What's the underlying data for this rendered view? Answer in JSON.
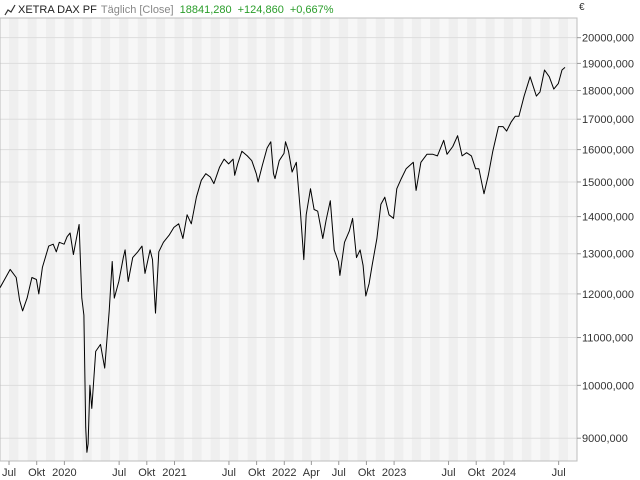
{
  "header": {
    "instrument": "XETRA DAX PF",
    "interval_mode": "Täglich [Close]",
    "last_value": "18841,280",
    "change_abs": "+124,860",
    "change_pct": "+0,667%",
    "currency": "€",
    "change_color": "#2a9d2a"
  },
  "chart_data": {
    "type": "line",
    "title": "XETRA DAX PF",
    "y_scale": "log",
    "ylim": [
      8600,
      20800
    ],
    "xlim": [
      "2019-06-01",
      "2024-08-31"
    ],
    "grid": true,
    "y_ticks": [
      {
        "value": 9000,
        "label": "9000,000"
      },
      {
        "value": 10000,
        "label": "10000,000"
      },
      {
        "value": 11000,
        "label": "11000,000"
      },
      {
        "value": 12000,
        "label": "12000,000"
      },
      {
        "value": 13000,
        "label": "13000,000"
      },
      {
        "value": 14000,
        "label": "14000,000"
      },
      {
        "value": 15000,
        "label": "15000,000"
      },
      {
        "value": 16000,
        "label": "16000,000"
      },
      {
        "value": 17000,
        "label": "17000,000"
      },
      {
        "value": 18000,
        "label": "18000,000"
      },
      {
        "value": 19000,
        "label": "19000,000"
      },
      {
        "value": 20000,
        "label": "20000,000"
      }
    ],
    "x_ticks": [
      {
        "date": "2019-07-01",
        "label": "Jul"
      },
      {
        "date": "2019-10-01",
        "label": "Okt"
      },
      {
        "date": "2020-01-01",
        "label": "2020"
      },
      {
        "date": "2020-07-01",
        "label": "Jul"
      },
      {
        "date": "2020-10-01",
        "label": "Okt"
      },
      {
        "date": "2021-01-01",
        "label": "2021"
      },
      {
        "date": "2021-07-01",
        "label": "Jul"
      },
      {
        "date": "2021-10-01",
        "label": "Okt"
      },
      {
        "date": "2022-01-01",
        "label": "2022"
      },
      {
        "date": "2022-04-01",
        "label": "Apr"
      },
      {
        "date": "2022-07-01",
        "label": "Jul"
      },
      {
        "date": "2022-10-01",
        "label": "Okt"
      },
      {
        "date": "2023-01-01",
        "label": "2023"
      },
      {
        "date": "2023-07-01",
        "label": "Jul"
      },
      {
        "date": "2023-10-01",
        "label": "Okt"
      },
      {
        "date": "2024-01-01",
        "label": "2024"
      },
      {
        "date": "2024-07-01",
        "label": "Jul"
      }
    ],
    "series": [
      {
        "color": "#000000",
        "points": [
          [
            "2019-06-01",
            12150
          ],
          [
            "2019-06-20",
            12400
          ],
          [
            "2019-07-05",
            12600
          ],
          [
            "2019-07-25",
            12400
          ],
          [
            "2019-08-05",
            11850
          ],
          [
            "2019-08-15",
            11600
          ],
          [
            "2019-08-30",
            11900
          ],
          [
            "2019-09-15",
            12400
          ],
          [
            "2019-09-30",
            12350
          ],
          [
            "2019-10-08",
            12000
          ],
          [
            "2019-10-20",
            12650
          ],
          [
            "2019-11-10",
            13200
          ],
          [
            "2019-11-25",
            13250
          ],
          [
            "2019-12-05",
            13050
          ],
          [
            "2019-12-15",
            13300
          ],
          [
            "2019-12-31",
            13250
          ],
          [
            "2020-01-10",
            13450
          ],
          [
            "2020-01-20",
            13550
          ],
          [
            "2020-01-31",
            12980
          ],
          [
            "2020-02-10",
            13400
          ],
          [
            "2020-02-19",
            13780
          ],
          [
            "2020-02-28",
            11900
          ],
          [
            "2020-03-06",
            11500
          ],
          [
            "2020-03-12",
            9200
          ],
          [
            "2020-03-16",
            8750
          ],
          [
            "2020-03-20",
            8900
          ],
          [
            "2020-03-26",
            10000
          ],
          [
            "2020-04-01",
            9550
          ],
          [
            "2020-04-14",
            10700
          ],
          [
            "2020-04-30",
            10850
          ],
          [
            "2020-05-14",
            10350
          ],
          [
            "2020-05-29",
            11600
          ],
          [
            "2020-06-08",
            12800
          ],
          [
            "2020-06-15",
            11900
          ],
          [
            "2020-06-30",
            12300
          ],
          [
            "2020-07-15",
            12900
          ],
          [
            "2020-07-21",
            13100
          ],
          [
            "2020-07-31",
            12300
          ],
          [
            "2020-08-15",
            12900
          ],
          [
            "2020-09-01",
            13050
          ],
          [
            "2020-09-15",
            13200
          ],
          [
            "2020-09-25",
            12500
          ],
          [
            "2020-10-12",
            13100
          ],
          [
            "2020-10-20",
            12850
          ],
          [
            "2020-10-30",
            11550
          ],
          [
            "2020-11-10",
            13050
          ],
          [
            "2020-11-25",
            13300
          ],
          [
            "2020-12-15",
            13500
          ],
          [
            "2020-12-30",
            13700
          ],
          [
            "2021-01-15",
            13800
          ],
          [
            "2021-01-29",
            13400
          ],
          [
            "2021-02-12",
            14050
          ],
          [
            "2021-02-26",
            13800
          ],
          [
            "2021-03-15",
            14550
          ],
          [
            "2021-03-31",
            15050
          ],
          [
            "2021-04-15",
            15250
          ],
          [
            "2021-04-30",
            15150
          ],
          [
            "2021-05-12",
            14950
          ],
          [
            "2021-05-31",
            15450
          ],
          [
            "2021-06-15",
            15700
          ],
          [
            "2021-06-30",
            15550
          ],
          [
            "2021-07-15",
            15700
          ],
          [
            "2021-07-20",
            15200
          ],
          [
            "2021-07-30",
            15550
          ],
          [
            "2021-08-13",
            15950
          ],
          [
            "2021-08-31",
            15800
          ],
          [
            "2021-09-15",
            15650
          ],
          [
            "2021-09-30",
            15250
          ],
          [
            "2021-10-06",
            15000
          ],
          [
            "2021-10-20",
            15500
          ],
          [
            "2021-11-05",
            16050
          ],
          [
            "2021-11-17",
            16250
          ],
          [
            "2021-11-26",
            15250
          ],
          [
            "2021-12-01",
            15100
          ],
          [
            "2021-12-15",
            15650
          ],
          [
            "2021-12-31",
            15880
          ],
          [
            "2022-01-05",
            16250
          ],
          [
            "2022-01-15",
            15950
          ],
          [
            "2022-01-27",
            15300
          ],
          [
            "2022-02-10",
            15600
          ],
          [
            "2022-02-24",
            14100
          ],
          [
            "2022-03-07",
            12850
          ],
          [
            "2022-03-15",
            14050
          ],
          [
            "2022-03-29",
            14800
          ],
          [
            "2022-04-10",
            14200
          ],
          [
            "2022-04-22",
            14150
          ],
          [
            "2022-05-09",
            13400
          ],
          [
            "2022-05-20",
            13900
          ],
          [
            "2022-06-03",
            14450
          ],
          [
            "2022-06-16",
            13100
          ],
          [
            "2022-06-30",
            12800
          ],
          [
            "2022-07-05",
            12450
          ],
          [
            "2022-07-20",
            13300
          ],
          [
            "2022-08-05",
            13600
          ],
          [
            "2022-08-16",
            13950
          ],
          [
            "2022-08-29",
            12900
          ],
          [
            "2022-09-10",
            13100
          ],
          [
            "2022-09-20",
            12700
          ],
          [
            "2022-09-29",
            11950
          ],
          [
            "2022-10-10",
            12250
          ],
          [
            "2022-10-20",
            12700
          ],
          [
            "2022-11-05",
            13400
          ],
          [
            "2022-11-18",
            14350
          ],
          [
            "2022-12-01",
            14550
          ],
          [
            "2022-12-15",
            14050
          ],
          [
            "2022-12-30",
            13950
          ],
          [
            "2023-01-10",
            14800
          ],
          [
            "2023-01-25",
            15100
          ],
          [
            "2023-02-10",
            15400
          ],
          [
            "2023-03-06",
            15600
          ],
          [
            "2023-03-15",
            14750
          ],
          [
            "2023-03-31",
            15600
          ],
          [
            "2023-04-20",
            15850
          ],
          [
            "2023-05-10",
            15850
          ],
          [
            "2023-05-25",
            15800
          ],
          [
            "2023-06-15",
            16300
          ],
          [
            "2023-06-26",
            15850
          ],
          [
            "2023-07-15",
            16100
          ],
          [
            "2023-07-31",
            16450
          ],
          [
            "2023-08-15",
            15800
          ],
          [
            "2023-08-30",
            15900
          ],
          [
            "2023-09-15",
            15800
          ],
          [
            "2023-09-29",
            15400
          ],
          [
            "2023-10-10",
            15400
          ],
          [
            "2023-10-27",
            14650
          ],
          [
            "2023-11-10",
            15200
          ],
          [
            "2023-11-25",
            15950
          ],
          [
            "2023-12-14",
            16750
          ],
          [
            "2023-12-29",
            16750
          ],
          [
            "2024-01-10",
            16600
          ],
          [
            "2024-01-25",
            16900
          ],
          [
            "2024-02-08",
            17100
          ],
          [
            "2024-02-20",
            17100
          ],
          [
            "2024-03-08",
            17800
          ],
          [
            "2024-03-28",
            18500
          ],
          [
            "2024-04-18",
            17800
          ],
          [
            "2024-04-30",
            17950
          ],
          [
            "2024-05-15",
            18750
          ],
          [
            "2024-05-31",
            18500
          ],
          [
            "2024-06-15",
            18050
          ],
          [
            "2024-06-30",
            18250
          ],
          [
            "2024-07-12",
            18750
          ],
          [
            "2024-07-22",
            18850
          ]
        ]
      }
    ]
  }
}
